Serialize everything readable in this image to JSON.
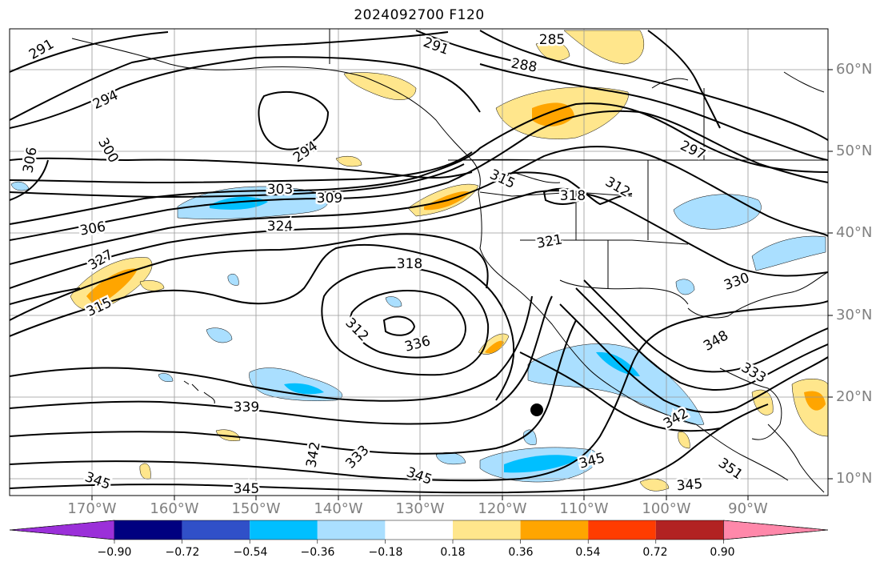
{
  "title": "2024092700 F120",
  "lat_labels": [
    "60°N",
    "50°N",
    "40°N",
    "30°N",
    "20°N",
    "10°N"
  ],
  "lon_labels": [
    "170°W",
    "160°W",
    "150°W",
    "140°W",
    "130°W",
    "120°W",
    "110°W",
    "100°W",
    "90°W"
  ],
  "contour_labels": [
    "291",
    "291",
    "285",
    "288",
    "294",
    "300",
    "306",
    "294",
    "297",
    "303",
    "309",
    "315",
    "318",
    "312",
    "306",
    "324",
    "321",
    "318",
    "330",
    "327",
    "315",
    "312",
    "336",
    "348",
    "333",
    "339",
    "333",
    "342",
    "345",
    "345",
    "345",
    "345",
    "351",
    "342",
    "345"
  ],
  "colorbar": {
    "tick_labels": [
      "−0.90",
      "−0.72",
      "−0.54",
      "−0.36",
      "−0.18",
      "0.18",
      "0.36",
      "0.54",
      "0.72",
      "0.90"
    ],
    "colors": [
      "#9b30d9",
      "#000080",
      "#3050c8",
      "#00bfff",
      "#aadfff",
      "#ffffff",
      "#ffe68c",
      "#ffa500",
      "#ff3c00",
      "#b22222",
      "#ff88aa"
    ]
  },
  "colors": {
    "neg_light": "#aadfff",
    "neg_mid": "#00bfff",
    "pos_light": "#ffe68c",
    "pos_mid": "#ffa500",
    "contour": "#000000",
    "coast": "#000000",
    "grid": "#999999"
  }
}
